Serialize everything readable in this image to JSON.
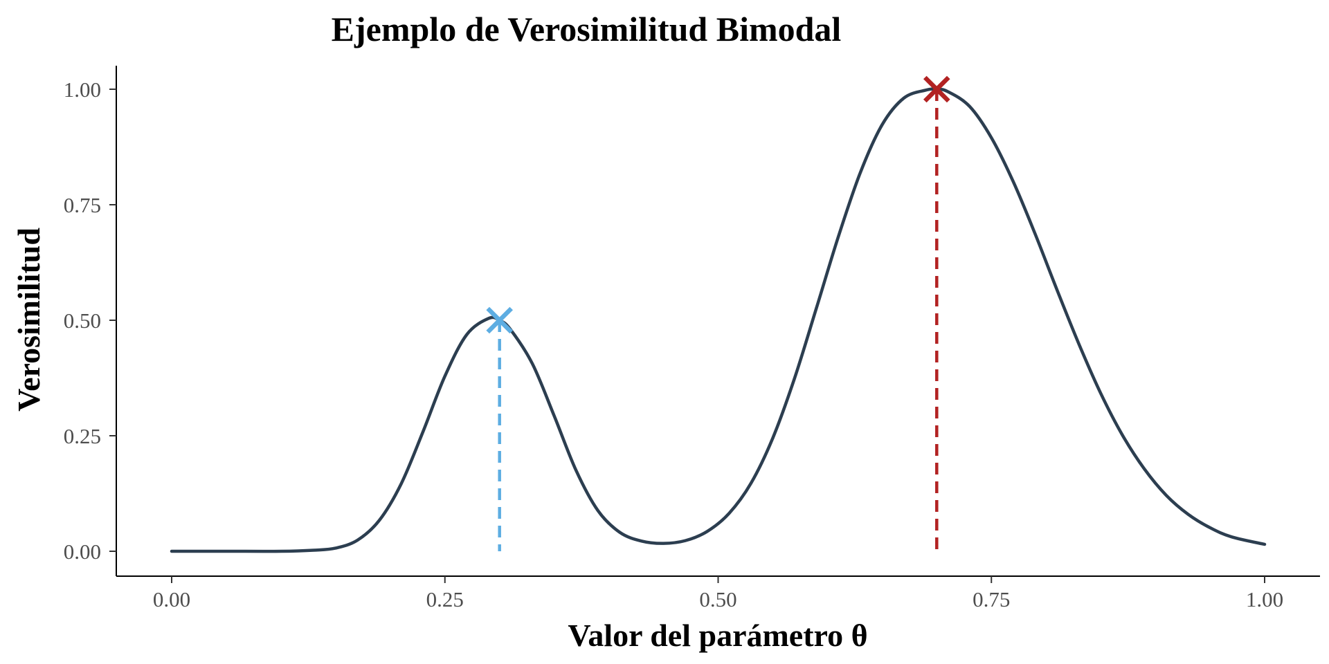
{
  "chart_data": {
    "type": "line",
    "title": "Ejemplo de Verosimilitud Bimodal",
    "xlabel": "Valor del parámetro θ",
    "ylabel": "Verosimilitud",
    "xlim": [
      0,
      1
    ],
    "ylim": [
      0,
      1
    ],
    "x_ticks": [
      "0.00",
      "0.25",
      "0.50",
      "0.75",
      "1.00"
    ],
    "y_ticks": [
      "0.00",
      "0.25",
      "0.50",
      "0.75",
      "1.00"
    ],
    "grid": false,
    "legend": "none",
    "series": [
      {
        "color": "#2c3e50",
        "x": [
          0.0,
          0.05,
          0.1,
          0.13,
          0.15,
          0.17,
          0.19,
          0.21,
          0.23,
          0.25,
          0.27,
          0.29,
          0.3,
          0.31,
          0.33,
          0.35,
          0.37,
          0.39,
          0.41,
          0.43,
          0.45,
          0.47,
          0.49,
          0.51,
          0.53,
          0.55,
          0.57,
          0.59,
          0.61,
          0.63,
          0.65,
          0.67,
          0.69,
          0.7,
          0.71,
          0.73,
          0.75,
          0.77,
          0.79,
          0.81,
          0.83,
          0.85,
          0.87,
          0.89,
          0.91,
          0.93,
          0.95,
          0.97,
          1.0
        ],
        "y": [
          0.0,
          0.0,
          0.0,
          0.0023,
          0.0068,
          0.024,
          0.067,
          0.146,
          0.259,
          0.379,
          0.469,
          0.504,
          0.5,
          0.48,
          0.406,
          0.293,
          0.175,
          0.088,
          0.041,
          0.022,
          0.017,
          0.023,
          0.043,
          0.082,
          0.147,
          0.245,
          0.375,
          0.527,
          0.681,
          0.819,
          0.923,
          0.981,
          0.998,
          1.0,
          0.995,
          0.963,
          0.895,
          0.8,
          0.687,
          0.566,
          0.449,
          0.342,
          0.251,
          0.178,
          0.121,
          0.08,
          0.051,
          0.031,
          0.015
        ]
      }
    ],
    "markers": [
      {
        "x": 0.3,
        "y": 0.5,
        "color": "#5dade2",
        "shape": "x"
      },
      {
        "x": 0.7,
        "y": 1.0,
        "color": "#b22222",
        "shape": "x"
      }
    ]
  }
}
